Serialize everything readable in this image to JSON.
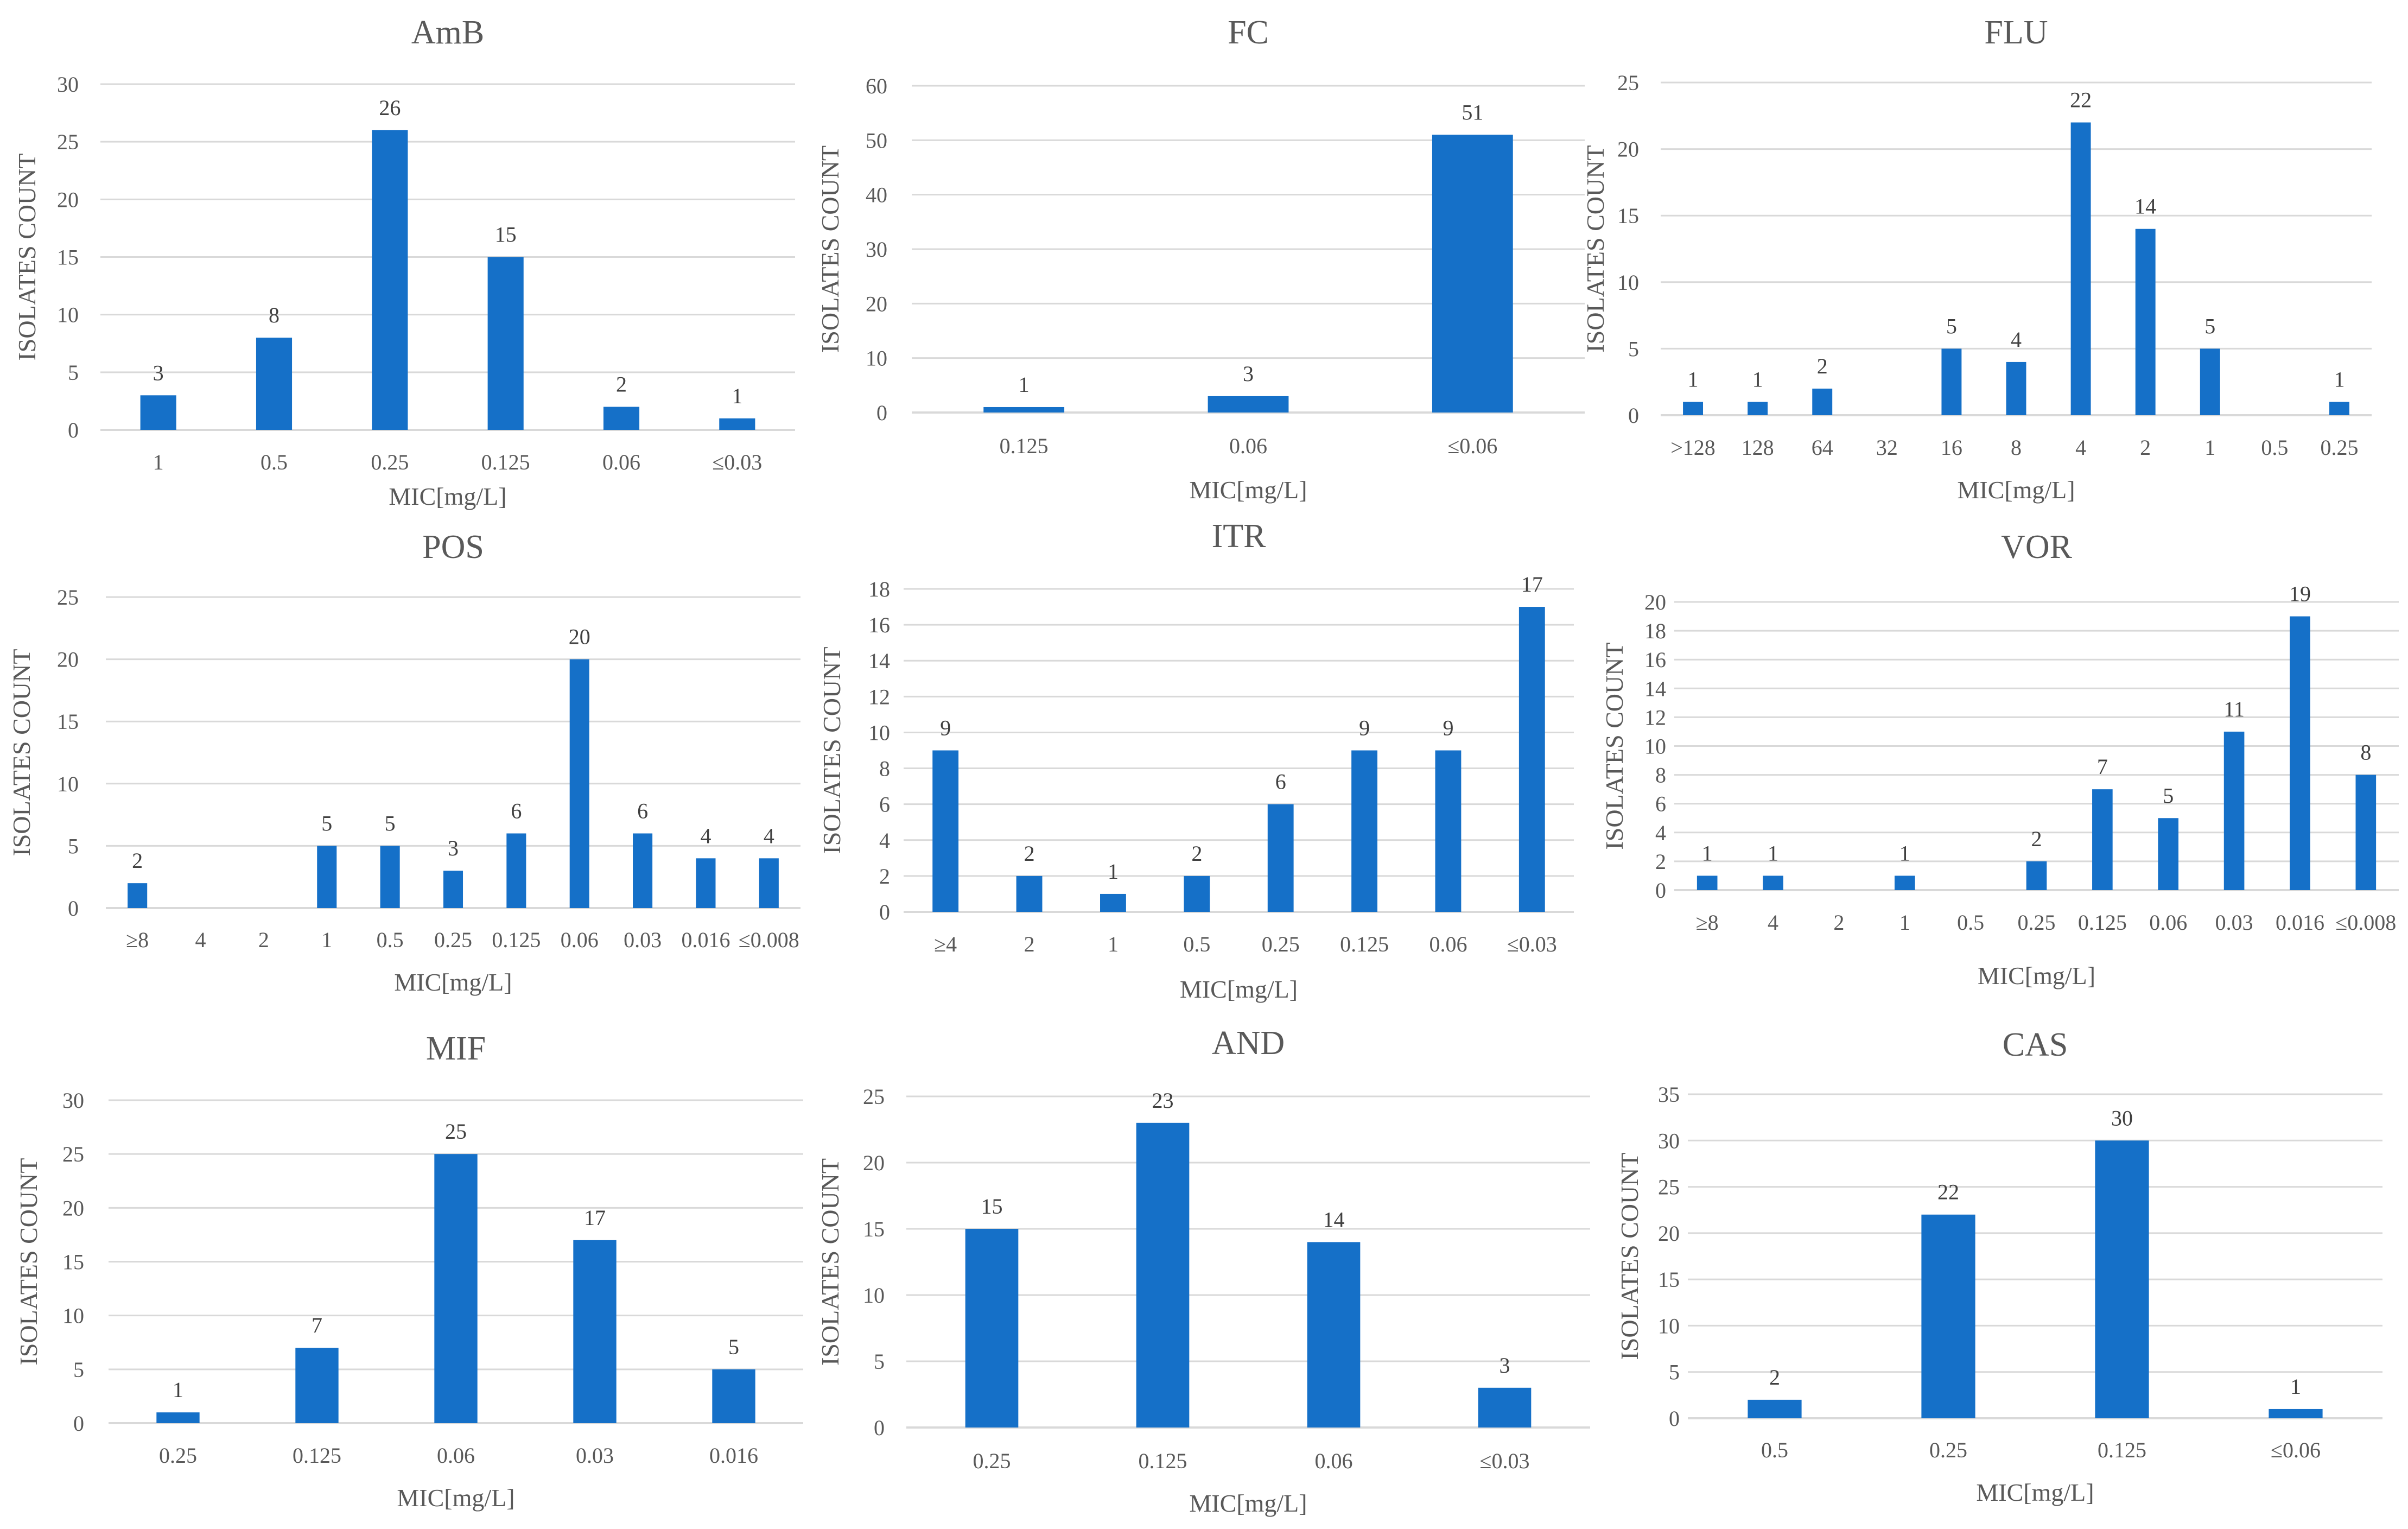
{
  "colors": {
    "bar": "#1570C8",
    "grid": "#D9D9D9",
    "text": "#595959",
    "title": "#595959"
  },
  "chart_data": [
    {
      "type": "bar",
      "title": "AmB",
      "xlabel": "MIC[mg/L]",
      "ylabel": "ISOLATES COUNT",
      "ylim": [
        0,
        30
      ],
      "yticks": [
        0,
        5,
        10,
        15,
        20,
        25,
        30
      ],
      "categories": [
        "1",
        "0.5",
        "0.25",
        "0.125",
        "0.06",
        "≤0.03"
      ],
      "values": [
        3,
        8,
        26,
        15,
        2,
        1
      ]
    },
    {
      "type": "bar",
      "title": "FC",
      "xlabel": "MIC[mg/L]",
      "ylabel": "ISOLATES COUNT",
      "ylim": [
        0,
        60
      ],
      "yticks": [
        0,
        10,
        20,
        30,
        40,
        50,
        60
      ],
      "categories": [
        "0.125",
        "0.06",
        "≤0.06"
      ],
      "values": [
        1,
        3,
        51
      ]
    },
    {
      "type": "bar",
      "title": "FLU",
      "xlabel": "MIC[mg/L]",
      "ylabel": "ISOLATES COUNT",
      "ylim": [
        0,
        25
      ],
      "yticks": [
        0,
        5,
        10,
        15,
        20,
        25
      ],
      "categories": [
        ">128",
        "128",
        "64",
        "32",
        "16",
        "8",
        "4",
        "2",
        "1",
        "0.5",
        "0.25"
      ],
      "values": [
        1,
        1,
        2,
        null,
        5,
        4,
        22,
        14,
        5,
        null,
        1
      ]
    },
    {
      "type": "bar",
      "title": "POS",
      "xlabel": "MIC[mg/L]",
      "ylabel": "ISOLATES COUNT",
      "ylim": [
        0,
        25
      ],
      "yticks": [
        0,
        5,
        10,
        15,
        20,
        25
      ],
      "categories": [
        "≥8",
        "4",
        "2",
        "1",
        "0.5",
        "0.25",
        "0.125",
        "0.06",
        "0.03",
        "0.016",
        "≤0.008"
      ],
      "values": [
        2,
        null,
        null,
        5,
        5,
        3,
        6,
        20,
        6,
        4,
        4
      ]
    },
    {
      "type": "bar",
      "title": "ITR",
      "xlabel": "MIC[mg/L]",
      "ylabel": "ISOLATES COUNT",
      "ylim": [
        0,
        18
      ],
      "yticks": [
        0,
        2,
        4,
        6,
        8,
        10,
        12,
        14,
        16,
        18
      ],
      "categories": [
        "≥4",
        "2",
        "1",
        "0.5",
        "0.25",
        "0.125",
        "0.06",
        "≤0.03"
      ],
      "values": [
        9,
        2,
        1,
        2,
        6,
        9,
        9,
        17
      ]
    },
    {
      "type": "bar",
      "title": "VOR",
      "xlabel": "MIC[mg/L]",
      "ylabel": "ISOLATES COUNT",
      "ylim": [
        0,
        20
      ],
      "yticks": [
        0,
        2,
        4,
        6,
        8,
        10,
        12,
        14,
        16,
        18,
        20
      ],
      "categories": [
        "≥8",
        "4",
        "2",
        "1",
        "0.5",
        "0.25",
        "0.125",
        "0.06",
        "0.03",
        "0.016",
        "≤0.008"
      ],
      "values": [
        1,
        1,
        null,
        1,
        null,
        2,
        7,
        5,
        11,
        19,
        8
      ]
    },
    {
      "type": "bar",
      "title": "MIF",
      "xlabel": "MIC[mg/L]",
      "ylabel": "ISOLATES COUNT",
      "ylim": [
        0,
        30
      ],
      "yticks": [
        0,
        5,
        10,
        15,
        20,
        25,
        30
      ],
      "categories": [
        "0.25",
        "0.125",
        "0.06",
        "0.03",
        "0.016"
      ],
      "values": [
        1,
        7,
        25,
        17,
        5
      ]
    },
    {
      "type": "bar",
      "title": "AND",
      "xlabel": "MIC[mg/L]",
      "ylabel": "ISOLATES COUNT",
      "ylim": [
        0,
        25
      ],
      "yticks": [
        0,
        5,
        10,
        15,
        20,
        25
      ],
      "categories": [
        "0.25",
        "0.125",
        "0.06",
        "≤0.03"
      ],
      "values": [
        15,
        23,
        14,
        3
      ]
    },
    {
      "type": "bar",
      "title": "CAS",
      "xlabel": "MIC[mg/L]",
      "ylabel": "ISOLATES COUNT",
      "ylim": [
        0,
        35
      ],
      "yticks": [
        0,
        5,
        10,
        15,
        20,
        25,
        30,
        35
      ],
      "categories": [
        "0.5",
        "0.25",
        "0.125",
        "≤0.06"
      ],
      "values": [
        2,
        22,
        30,
        1
      ]
    }
  ]
}
